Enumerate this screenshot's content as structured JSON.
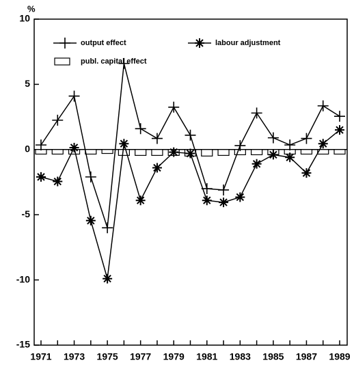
{
  "chart_data": {
    "type": "line",
    "ylabel": "%",
    "categories": [
      "1971",
      null,
      "1973",
      null,
      "1975",
      null,
      "1977",
      null,
      "1979",
      null,
      "1981",
      null,
      "1983",
      null,
      "1985",
      null,
      "1987",
      null,
      "1989"
    ],
    "series": [
      {
        "name": "output effect",
        "color": "#000000",
        "marker": "plus",
        "values": [
          0.35,
          2.25,
          4.1,
          -2.1,
          -6.0,
          6.6,
          1.6,
          0.85,
          3.25,
          1.1,
          -3.0,
          -3.1,
          0.3,
          2.8,
          0.9,
          0.35,
          0.85,
          3.35,
          2.55
        ]
      },
      {
        "name": "labour adjustment",
        "color": "#000000",
        "marker": "star",
        "values": [
          -2.1,
          -2.45,
          0.15,
          -5.45,
          -9.9,
          0.45,
          -3.9,
          -1.4,
          -0.2,
          -0.3,
          -3.9,
          -4.05,
          -3.65,
          -1.1,
          -0.4,
          -0.6,
          -1.8,
          0.45,
          1.5
        ]
      },
      {
        "name": "publ. capital effect",
        "color": "#ffffff",
        "marker": "bar",
        "values": [
          -0.35,
          -0.35,
          -0.35,
          -0.35,
          -0.3,
          -0.45,
          -0.45,
          -0.45,
          -0.45,
          -0.5,
          -0.5,
          -0.45,
          -0.4,
          -0.4,
          -0.4,
          -0.35,
          -0.35,
          -0.35,
          -0.35
        ]
      }
    ],
    "ylim": [
      -15,
      10
    ],
    "yticks": [
      10,
      5,
      0,
      -5,
      -10,
      -15
    ],
    "legend": "top-left"
  }
}
